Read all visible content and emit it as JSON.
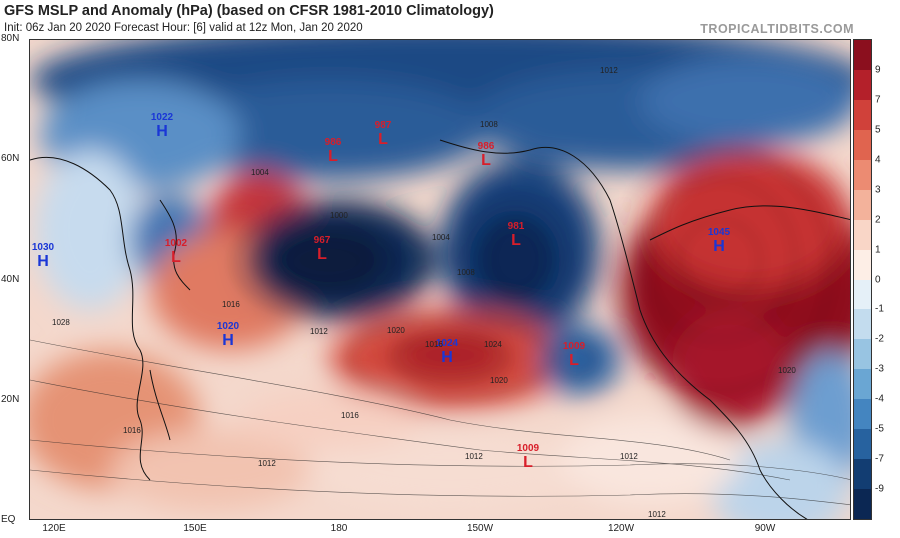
{
  "title": "GFS MSLP and Anomaly (hPa) (based on CFSR 1981-2010 Climatology)",
  "subtitle": "Init: 06z Jan 20 2020   Forecast Hour: [6]   valid at 12z Mon, Jan 20 2020",
  "brand": "TROPICALTIDBITS.COM",
  "lat_labels": [
    "80N",
    "60N",
    "40N",
    "20N",
    "EQ"
  ],
  "lon_labels": [
    "120E",
    "150E",
    "180",
    "150W",
    "120W",
    "90W"
  ],
  "colorbar": {
    "labels": [
      "9",
      "7",
      "5",
      "4",
      "3",
      "2",
      "1",
      "0",
      "-1",
      "-2",
      "-3",
      "-4",
      "-5",
      "-7",
      "-9"
    ],
    "colors": [
      "#8b0f1e",
      "#b4202a",
      "#d0413a",
      "#e0644f",
      "#ec8b72",
      "#f3b29b",
      "#f9d6c7",
      "#fdeee6",
      "#e5f0f8",
      "#c3dcee",
      "#98c4e2",
      "#6aa6d3",
      "#4485c0",
      "#27629f",
      "#123d72",
      "#0b2753"
    ]
  },
  "systems": [
    {
      "type": "H",
      "value": "1022"
    },
    {
      "type": "H",
      "value": "1030"
    },
    {
      "type": "L",
      "value": "1002"
    },
    {
      "type": "H",
      "value": "1020"
    },
    {
      "type": "L",
      "value": "967"
    },
    {
      "type": "L",
      "value": "986"
    },
    {
      "type": "L",
      "value": "987"
    },
    {
      "type": "L",
      "value": "986"
    },
    {
      "type": "H",
      "value": "1024"
    },
    {
      "type": "L",
      "value": "981"
    },
    {
      "type": "L",
      "value": "1009"
    },
    {
      "type": "H",
      "value": "1045"
    },
    {
      "type": "L",
      "value": "1009"
    }
  ],
  "isobar_labels": [
    "1012",
    "1008",
    "1004",
    "1000",
    "1016",
    "1020",
    "1024",
    "1028",
    "1012",
    "1016",
    "1012",
    "1012",
    "1012",
    "1016",
    "1020",
    "1008",
    "1004",
    "1016",
    "1020",
    "1012"
  ]
}
